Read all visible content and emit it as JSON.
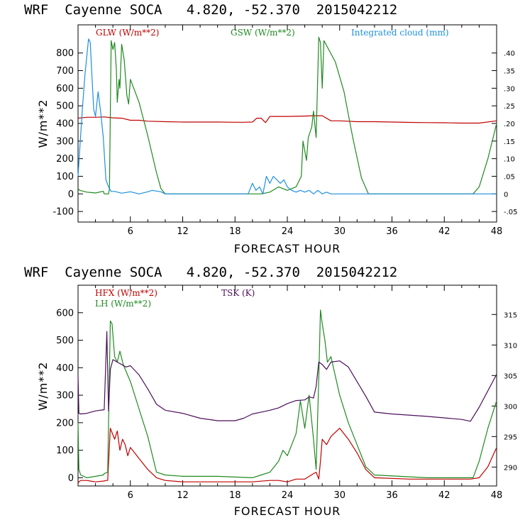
{
  "colors": {
    "red": "#c00000",
    "green": "#1f8a1f",
    "blue": "#1e8fe0",
    "purple": "#4b0f5a",
    "axis": "#000000"
  },
  "chart_data": [
    {
      "type": "line",
      "title": "WRF  Cayenne SOCA   4.820, -52.370  2015042212",
      "xlabel": "FORECAST HOUR",
      "ylabel": "W/m**2",
      "xlim": [
        0,
        48
      ],
      "xticks": [
        6,
        12,
        18,
        24,
        30,
        36,
        42,
        48
      ],
      "ylim": [
        -160,
        960
      ],
      "yticks": [
        -100,
        0,
        100,
        200,
        300,
        400,
        500,
        600,
        700,
        800
      ],
      "ylim_right": [
        -0.08,
        0.48
      ],
      "yticks_right": [
        -0.05,
        0,
        0.05,
        0.1,
        0.15,
        0.2,
        0.25,
        0.3,
        0.35,
        0.4
      ],
      "yticklabels_right": [
        "-.05",
        "0",
        ".05",
        ".10",
        ".15",
        ".20",
        ".25",
        ".30",
        ".35",
        ".40"
      ],
      "legend": [
        {
          "label": "GLW (W/m**2)",
          "color": "#c00000"
        },
        {
          "label": "GSW (W/m**2)",
          "color": "#1f8a1f"
        },
        {
          "label": "Integrated cloud (mm)",
          "color": "#1e8fe0"
        }
      ],
      "series": [
        {
          "name": "GLW",
          "axis": "left",
          "color": "#c00000",
          "x": [
            0,
            1,
            2,
            3,
            4,
            5,
            6,
            7,
            8,
            10,
            12,
            14,
            16,
            18,
            19,
            20,
            20.5,
            21,
            21.5,
            22,
            24,
            26,
            27,
            28,
            29,
            30,
            32,
            34,
            36,
            38,
            40,
            42,
            44,
            46,
            48
          ],
          "values": [
            430,
            435,
            435,
            437,
            432,
            430,
            418,
            418,
            413,
            410,
            408,
            408,
            408,
            407,
            407,
            408,
            430,
            430,
            405,
            440,
            440,
            442,
            444,
            444,
            415,
            415,
            410,
            410,
            408,
            406,
            405,
            404,
            402,
            402,
            415
          ]
        },
        {
          "name": "GSW",
          "axis": "left",
          "color": "#1f8a1f",
          "x": [
            0,
            0.2,
            1,
            2,
            2.9,
            3,
            3.5,
            3.6,
            3.8,
            4.0,
            4.2,
            4.4,
            4.5,
            4.7,
            4.8,
            5.0,
            5.3,
            5.6,
            5.8,
            6,
            7,
            8,
            9,
            9.5,
            10,
            20,
            21,
            22,
            23,
            24,
            25,
            25.6,
            25.8,
            26.2,
            26.4,
            26.8,
            27.0,
            27.3,
            27.6,
            27.8,
            28.0,
            28.2,
            29.5,
            30.5,
            31.5,
            32.5,
            33.3,
            34,
            45.3,
            46,
            47,
            48
          ],
          "values": [
            30,
            20,
            10,
            5,
            15,
            0,
            0,
            30,
            870,
            820,
            860,
            700,
            520,
            650,
            600,
            850,
            760,
            560,
            510,
            650,
            520,
            330,
            120,
            30,
            0,
            0,
            0,
            10,
            40,
            20,
            40,
            100,
            300,
            190,
            320,
            380,
            470,
            320,
            890,
            860,
            600,
            870,
            750,
            580,
            320,
            90,
            0,
            0,
            0,
            40,
            200,
            400
          ]
        },
        {
          "name": "Integrated cloud",
          "axis": "right",
          "color": "#1e8fe0",
          "x": [
            0,
            0.2,
            0.5,
            0.8,
            1.0,
            1.2,
            1.4,
            1.6,
            1.8,
            2.0,
            2.3,
            2.6,
            2.9,
            3.2,
            3.5,
            3.8,
            4.2,
            5,
            6,
            7,
            8,
            8.5,
            9.5,
            10,
            12,
            16,
            19.5,
            20,
            20.4,
            20.8,
            21.2,
            21.6,
            22,
            22.4,
            22.8,
            23.2,
            23.6,
            24,
            24.5,
            25,
            25.5,
            26,
            26.5,
            27,
            27.5,
            28,
            28.5,
            29,
            48
          ],
          "values": [
            0.05,
            0.13,
            0.24,
            0.34,
            0.39,
            0.44,
            0.43,
            0.33,
            0.24,
            0.22,
            0.29,
            0.23,
            0.16,
            0.04,
            0.02,
            0.007,
            0.007,
            0.002,
            0.006,
            0.0,
            0.006,
            0.01,
            0.006,
            0.0,
            0.0,
            0.0,
            0.0,
            0.03,
            0.01,
            0.02,
            0.0,
            0.05,
            0.03,
            0.05,
            0.04,
            0.03,
            0.04,
            0.02,
            0.01,
            0.005,
            0.01,
            0.005,
            0.01,
            0.0,
            0.01,
            0.0,
            0.005,
            0.0,
            0.0
          ]
        }
      ]
    },
    {
      "type": "line",
      "title": "WRF  Cayenne SOCA   4.820, -52.370  2015042212",
      "xlabel": "FORECAST HOUR",
      "ylabel": "W/m**2",
      "xlim": [
        0,
        48
      ],
      "xticks": [
        6,
        12,
        18,
        24,
        30,
        36,
        42,
        48
      ],
      "ylim": [
        -30,
        700
      ],
      "yticks": [
        0,
        100,
        200,
        300,
        400,
        500,
        600
      ],
      "ylim_right": [
        286.9,
        319.8
      ],
      "yticks_right": [
        290,
        295,
        300,
        305,
        310,
        315
      ],
      "yticklabels_right": [
        "290",
        "295",
        "300",
        "305",
        "310",
        "315"
      ],
      "legend": [
        {
          "label": "HFX (W/m**2)",
          "color": "#c00000"
        },
        {
          "label": "LH  (W/m**2)",
          "color": "#1f8a1f"
        },
        {
          "label": "TSK (K)",
          "color": "#4b0f5a"
        }
      ],
      "series": [
        {
          "name": "HFX",
          "axis": "left",
          "color": "#c00000",
          "x": [
            0,
            0.1,
            0.3,
            1,
            2,
            3,
            3.2,
            3.4,
            3.7,
            4.2,
            4.5,
            4.8,
            5.1,
            5.4,
            5.7,
            6,
            7,
            8,
            9,
            10,
            12,
            16,
            20,
            22,
            23,
            24,
            25,
            26,
            27,
            27.3,
            27.6,
            27.8,
            28.0,
            28.5,
            29,
            30,
            31,
            32,
            33,
            34,
            38,
            42,
            45,
            46,
            47,
            48
          ],
          "values": [
            -20,
            -15,
            -10,
            -10,
            -15,
            -12,
            -10,
            -10,
            180,
            140,
            170,
            100,
            140,
            120,
            80,
            110,
            70,
            30,
            0,
            -10,
            -15,
            -15,
            -15,
            -10,
            -10,
            -15,
            -5,
            -5,
            15,
            20,
            -5,
            60,
            140,
            120,
            150,
            180,
            140,
            90,
            30,
            0,
            -5,
            -5,
            -5,
            0,
            40,
            110
          ]
        },
        {
          "name": "LH",
          "axis": "left",
          "color": "#1f8a1f",
          "x": [
            0,
            0.1,
            0.3,
            1,
            2,
            2.9,
            3.0,
            3.4,
            3.7,
            3.9,
            4.2,
            4.5,
            4.8,
            5.2,
            5.6,
            6,
            7,
            8,
            9,
            10,
            12,
            16,
            20,
            21,
            22,
            22.5,
            23,
            23.5,
            24,
            25,
            25.5,
            26,
            26.5,
            27,
            27.3,
            27.6,
            27.8,
            28.0,
            28.3,
            28.6,
            29,
            30,
            31,
            32,
            33,
            34,
            40,
            45.3,
            46,
            47,
            48
          ],
          "values": [
            200,
            30,
            10,
            0,
            5,
            10,
            15,
            20,
            570,
            560,
            440,
            420,
            460,
            410,
            380,
            350,
            250,
            150,
            20,
            10,
            5,
            5,
            0,
            10,
            20,
            40,
            60,
            100,
            80,
            160,
            280,
            180,
            300,
            140,
            30,
            360,
            610,
            560,
            500,
            420,
            440,
            300,
            200,
            120,
            40,
            10,
            0,
            0,
            60,
            180,
            280
          ]
        },
        {
          "name": "TSK",
          "axis": "right",
          "color": "#4b0f5a",
          "x": [
            0,
            0.1,
            0.3,
            1,
            2,
            3,
            3.3,
            3.5,
            3.7,
            4.0,
            4.5,
            5,
            5.5,
            6,
            7,
            8,
            9,
            10,
            12,
            14,
            16,
            18,
            19,
            20,
            21,
            22,
            23,
            24,
            25,
            26,
            26.5,
            27,
            27.3,
            27.6,
            28,
            28.5,
            29,
            30,
            31,
            32,
            33,
            34,
            36,
            40,
            44,
            45,
            46,
            47,
            48
          ],
          "values": [
            305,
            298.8,
            298.7,
            298.8,
            299.2,
            299.4,
            312.2,
            299.2,
            306.0,
            307.6,
            307.2,
            306.8,
            306.4,
            306.6,
            305.1,
            302.8,
            300.3,
            299.3,
            298.8,
            298.0,
            297.6,
            297.6,
            298.0,
            298.7,
            299.0,
            299.3,
            299.7,
            300.4,
            300.9,
            301.0,
            301.5,
            301.3,
            303.2,
            307.2,
            306.8,
            306.0,
            307.2,
            307.4,
            306.4,
            304.0,
            301.6,
            299.0,
            298.7,
            298.3,
            297.8,
            297.5,
            299.8,
            302.5,
            305.2
          ]
        }
      ]
    }
  ]
}
